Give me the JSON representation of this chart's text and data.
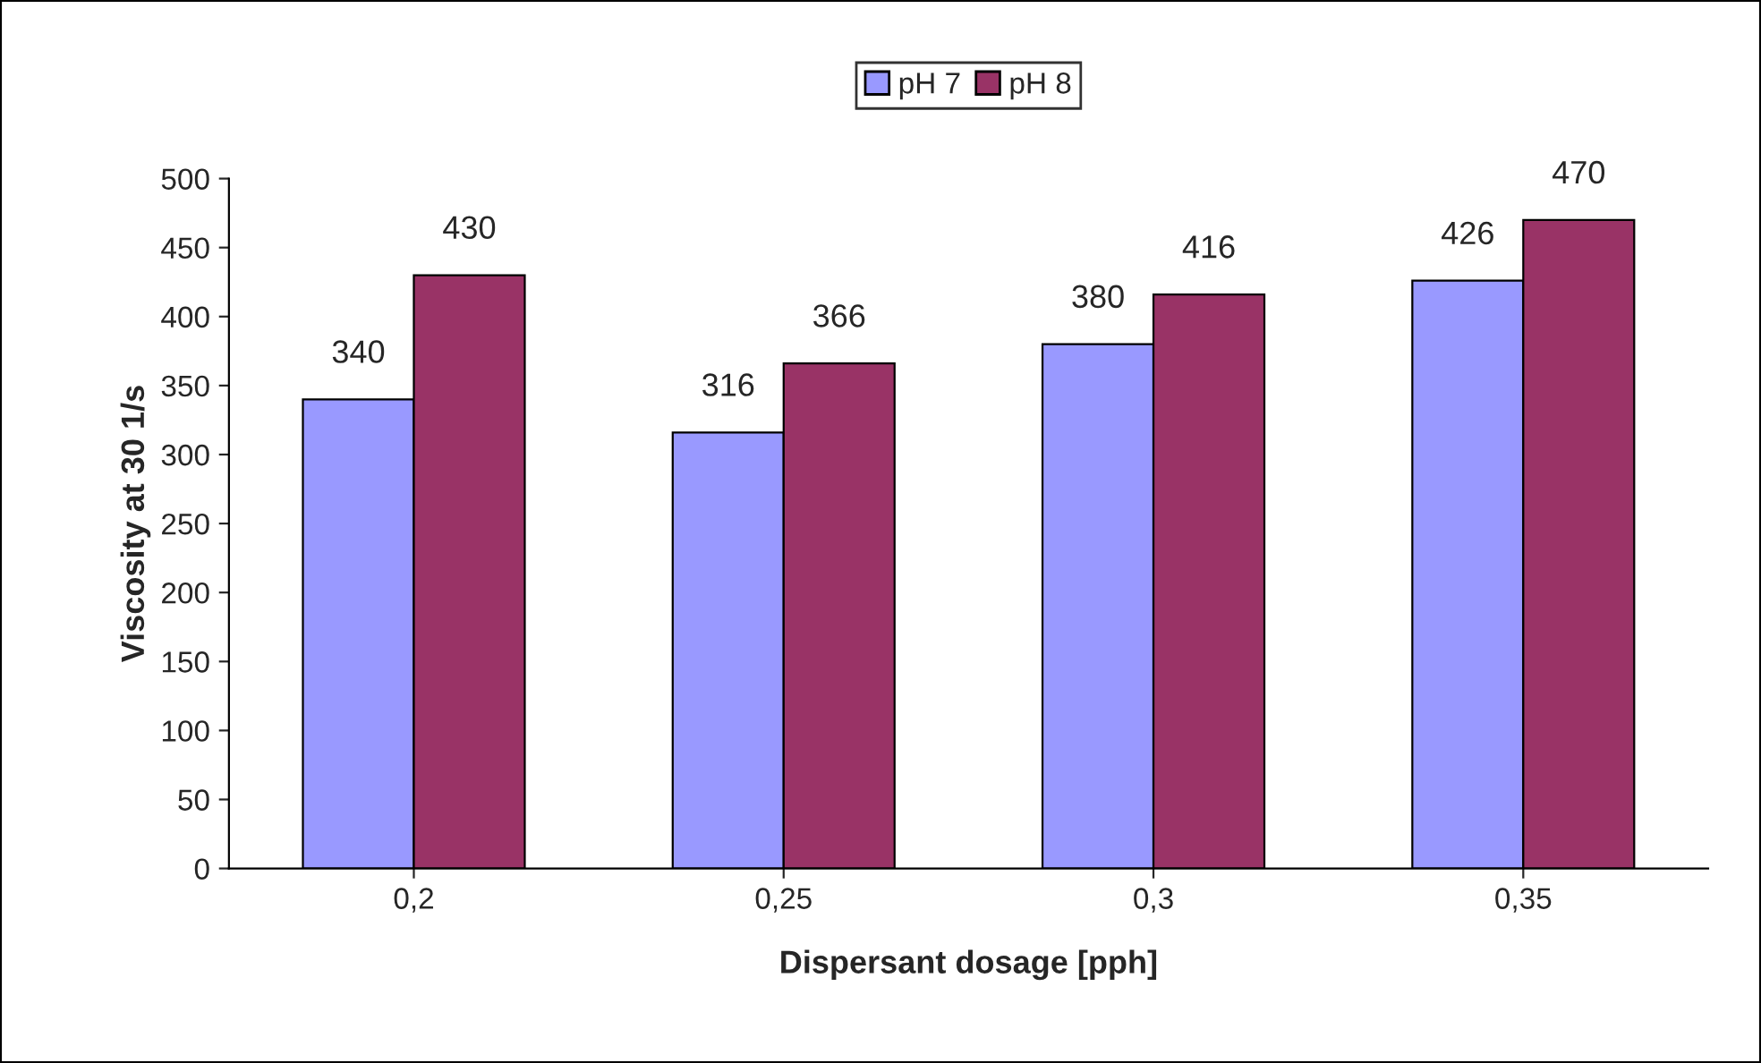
{
  "chart_data": {
    "type": "bar",
    "xlabel": "Dispersant dosage [pph]",
    "ylabel": "Viscosity at 30 1/s",
    "categories": [
      "0,2",
      "0,25",
      "0,3",
      "0,35"
    ],
    "series": [
      {
        "name": "pH 7",
        "color": "#9999ff",
        "values": [
          340,
          316,
          380,
          426
        ]
      },
      {
        "name": "pH 8",
        "color": "#993366",
        "values": [
          430,
          366,
          416,
          470
        ]
      }
    ],
    "ylim": [
      0,
      500
    ],
    "yticks": [
      0,
      50,
      100,
      150,
      200,
      250,
      300,
      350,
      400,
      450,
      500
    ],
    "data_labels": true,
    "legend": "top",
    "grid": false
  }
}
